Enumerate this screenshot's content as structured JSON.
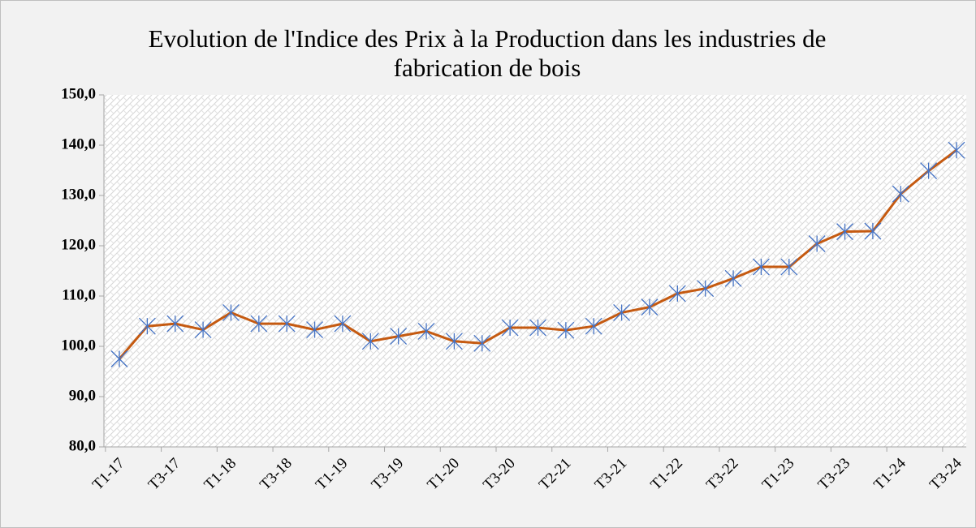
{
  "chart_data": {
    "type": "line",
    "title": "Evolution de l'Indice des Prix à la Production dans les industries de fabrication de bois",
    "categories": [
      "T1-17",
      null,
      "T3-17",
      null,
      "T1-18",
      null,
      "T3-18",
      null,
      "T1-19",
      null,
      "T3-19",
      null,
      "T1-20",
      null,
      "T3-20",
      null,
      "T2-21",
      null,
      "T3-21",
      null,
      "T1-22",
      null,
      "T3-22",
      null,
      "T1-23",
      null,
      "T3-23",
      null,
      "T1-24",
      null,
      "T3-24"
    ],
    "series": [
      {
        "color": "#c55a11",
        "marker_color": "#4472c4",
        "values": [
          97.5,
          104.0,
          104.5,
          103.3,
          106.7,
          104.5,
          104.5,
          103.3,
          104.5,
          101.0,
          102.0,
          103.0,
          101.0,
          100.6,
          103.7,
          103.7,
          103.2,
          104.0,
          106.7,
          107.8,
          110.5,
          111.5,
          113.5,
          115.8,
          115.8,
          120.4,
          122.8,
          122.9,
          130.3,
          134.9,
          139.0
        ]
      }
    ],
    "ylim": [
      80,
      150
    ],
    "yticks": [
      {
        "value": 80,
        "label": "80,0"
      },
      {
        "value": 90,
        "label": "90,0"
      },
      {
        "value": 100,
        "label": "100,0"
      },
      {
        "value": 110,
        "label": "110,0"
      },
      {
        "value": 120,
        "label": "120,0"
      },
      {
        "value": 130,
        "label": "130,0"
      },
      {
        "value": 140,
        "label": "140,0"
      },
      {
        "value": 150,
        "label": "150,0"
      }
    ],
    "grid": false
  }
}
